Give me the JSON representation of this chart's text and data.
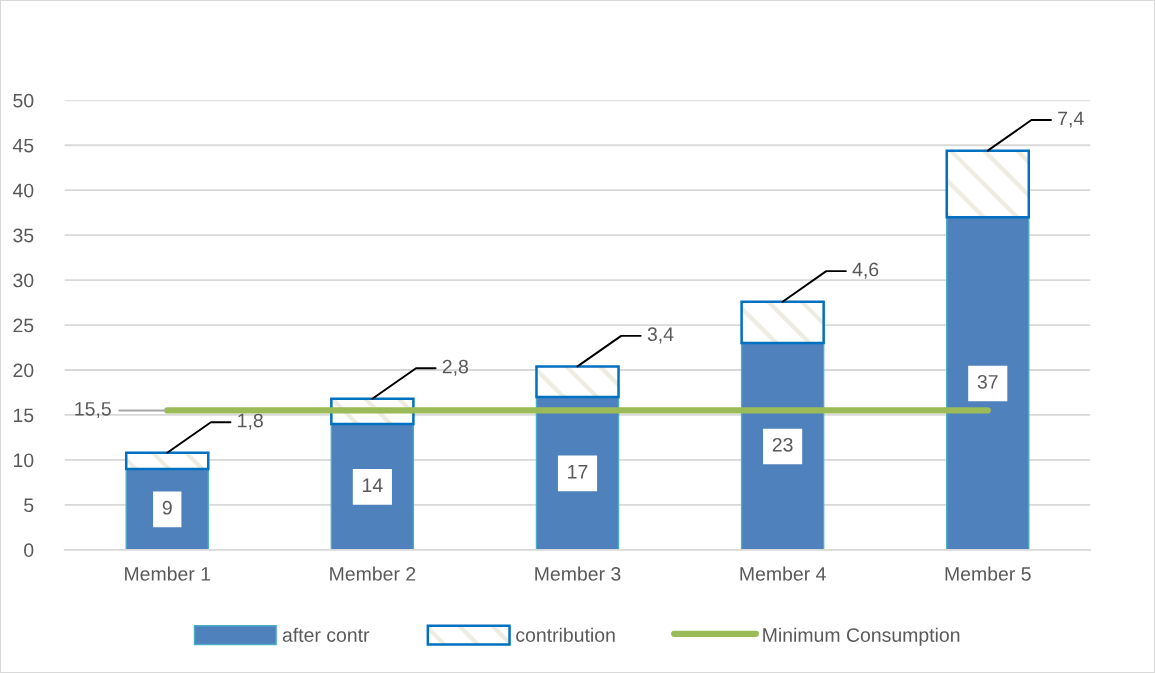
{
  "chart_data": {
    "type": "bar",
    "stacked": true,
    "categories": [
      "Member 1",
      "Member 2",
      "Member 3",
      "Member 4",
      "Member 5"
    ],
    "series": [
      {
        "name": "after contr",
        "color": "#4f81bd",
        "values": [
          9,
          14,
          17,
          23,
          37
        ],
        "value_labels": [
          "9",
          "14",
          "17",
          "23",
          "37"
        ]
      },
      {
        "name": "contribution",
        "color": "#0070c0",
        "values": [
          1.8,
          2.8,
          3.4,
          4.6,
          7.4
        ],
        "value_labels": [
          "1,8",
          "2,8",
          "3,4",
          "4,6",
          "7,4"
        ]
      },
      {
        "name": "Minimum Consumption",
        "type": "line",
        "color": "#9bbb59",
        "values": [
          15.5,
          15.5,
          15.5,
          15.5,
          15.5
        ],
        "value_labels": [
          "15,5",
          null,
          null,
          null,
          null
        ]
      }
    ],
    "ylim": [
      0,
      50
    ],
    "yticks": [
      0,
      5,
      10,
      15,
      20,
      25,
      30,
      35,
      40,
      45,
      50
    ],
    "grid": "y",
    "legend": "bottom"
  }
}
